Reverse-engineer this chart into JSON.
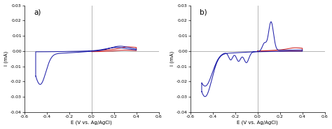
{
  "title_a": "a)",
  "title_b": "b)",
  "xlabel": "E (V vs. Ag/AgCl)",
  "ylabel": "i (mA)",
  "xlim": [
    -0.6,
    0.6
  ],
  "ylim": [
    -0.04,
    0.03
  ],
  "yticks": [
    -0.04,
    -0.03,
    -0.02,
    -0.01,
    0,
    0.01,
    0.02,
    0.03
  ],
  "xticks": [
    -0.6,
    -0.4,
    -0.2,
    0,
    0.2,
    0.4,
    0.6
  ],
  "background": "#ffffff",
  "line_blue": "#2222aa",
  "line_red": "#cc2222",
  "axline_color": "#aaaaaa",
  "figsize": [
    4.74,
    1.84
  ],
  "dpi": 100
}
